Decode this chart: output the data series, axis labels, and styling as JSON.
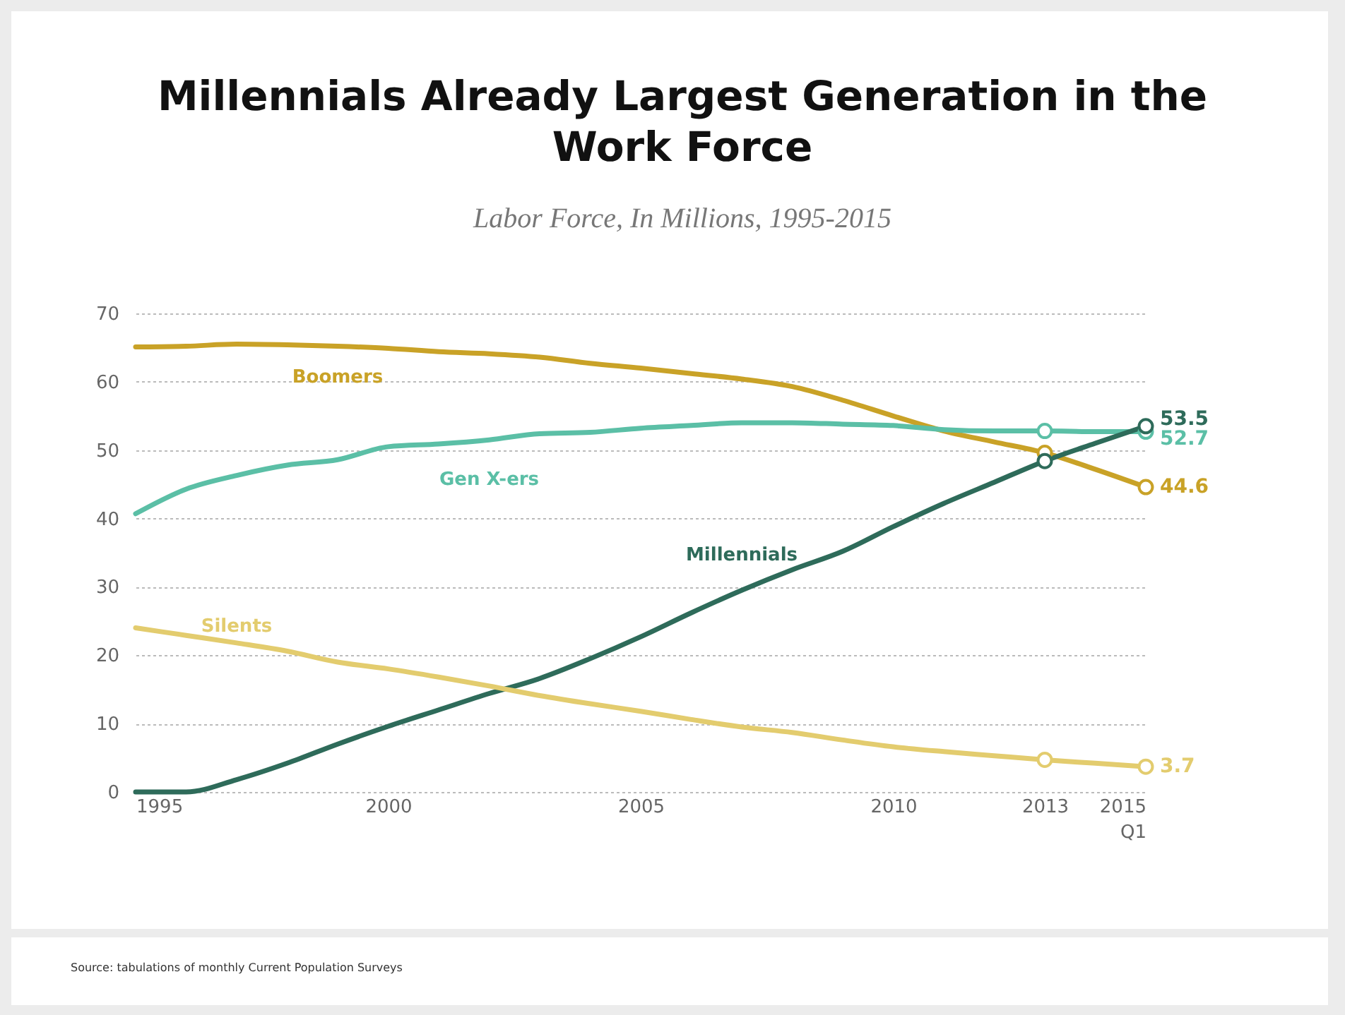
{
  "chart_data": {
    "type": "line",
    "title": "Millennials Already Largest Generation in the Work Force",
    "subtitle": "Labor Force, In Millions, 1995-2015",
    "annotations": [
      "Source: tabulations of monthly Current Population Surveys"
    ],
    "x": [
      1995,
      1996,
      1997,
      1998,
      1999,
      2000,
      2001,
      2002,
      2003,
      2004,
      2005,
      2006,
      2007,
      2008,
      2009,
      2010,
      2011,
      2012,
      2013,
      2014,
      2015
    ],
    "xlim": [
      1995,
      2015
    ],
    "xticks": [
      1995,
      2000,
      2005,
      2010,
      2013,
      {
        "value": 2015,
        "label": "2015 Q1"
      }
    ],
    "ylim": [
      0,
      70
    ],
    "yticks": [
      0,
      10,
      20,
      30,
      40,
      50,
      60,
      70
    ],
    "grid": "y",
    "line_style": "solid",
    "series": [
      {
        "name": "Boomers",
        "color": "#c9a227",
        "values": [
          65.1,
          65.2,
          65.5,
          65.4,
          65.2,
          64.9,
          64.4,
          64.1,
          63.6,
          62.7,
          62.0,
          61.2,
          60.4,
          59.3,
          57.3,
          55.0,
          52.8,
          51.2,
          49.6,
          47.2,
          44.6
        ]
      },
      {
        "name": "Gen X-ers",
        "color": "#5bbfa6",
        "values": [
          40.7,
          44.3,
          46.3,
          47.8,
          48.6,
          50.5,
          50.9,
          51.5,
          52.4,
          52.6,
          53.2,
          53.6,
          54.0,
          54.0,
          53.8,
          53.6,
          53.0,
          52.8,
          52.8,
          52.7,
          52.7
        ]
      },
      {
        "name": "Millennials",
        "color": "#2e6b5a",
        "values": [
          0,
          0,
          1.8,
          4.2,
          7.0,
          9.6,
          12.0,
          14.4,
          16.6,
          19.5,
          22.7,
          26.2,
          29.5,
          32.5,
          35.2,
          38.8,
          42.2,
          45.3,
          48.4,
          51.0,
          53.5
        ]
      },
      {
        "name": "Silents",
        "color": "#e3cc6e",
        "values": [
          24.0,
          22.9,
          21.8,
          20.6,
          19.0,
          18.0,
          16.8,
          15.5,
          14.1,
          12.9,
          11.8,
          10.6,
          9.5,
          8.7,
          7.6,
          6.6,
          5.9,
          5.3,
          4.7,
          4.2,
          3.7
        ]
      },
      {
        "type": "scatter",
        "marker": "circle",
        "color": "#c9a227",
        "values": [
          null,
          null,
          null,
          null,
          null,
          null,
          null,
          null,
          null,
          null,
          null,
          null,
          null,
          null,
          null,
          null,
          null,
          null,
          49.6,
          null,
          44.6
        ],
        "value_labels": [
          null,
          null,
          null,
          null,
          null,
          null,
          null,
          null,
          null,
          null,
          null,
          null,
          null,
          null,
          null,
          null,
          null,
          null,
          null,
          null,
          "44.6"
        ]
      },
      {
        "type": "scatter",
        "marker": "circle",
        "color": "#5bbfa6",
        "values": [
          null,
          null,
          null,
          null,
          null,
          null,
          null,
          null,
          null,
          null,
          null,
          null,
          null,
          null,
          null,
          null,
          null,
          null,
          52.8,
          null,
          52.7
        ],
        "value_labels": [
          null,
          null,
          null,
          null,
          null,
          null,
          null,
          null,
          null,
          null,
          null,
          null,
          null,
          null,
          null,
          null,
          null,
          null,
          null,
          null,
          "52.7"
        ]
      },
      {
        "type": "scatter",
        "marker": "circle",
        "color": "#2e6b5a",
        "values": [
          null,
          null,
          null,
          null,
          null,
          null,
          null,
          null,
          null,
          null,
          null,
          null,
          null,
          null,
          null,
          null,
          null,
          null,
          48.4,
          null,
          53.5
        ],
        "value_labels": [
          null,
          null,
          null,
          null,
          null,
          null,
          null,
          null,
          null,
          null,
          null,
          null,
          null,
          null,
          null,
          null,
          null,
          null,
          null,
          null,
          "53.5"
        ]
      },
      {
        "type": "scatter",
        "marker": "circle",
        "color": "#e3cc6e",
        "values": [
          null,
          null,
          null,
          null,
          null,
          null,
          null,
          null,
          null,
          null,
          null,
          null,
          null,
          null,
          null,
          null,
          null,
          null,
          4.7,
          null,
          3.7
        ],
        "value_labels": [
          null,
          null,
          null,
          null,
          null,
          null,
          null,
          null,
          null,
          null,
          null,
          null,
          null,
          null,
          null,
          null,
          null,
          null,
          null,
          null,
          "3.7"
        ]
      }
    ]
  }
}
